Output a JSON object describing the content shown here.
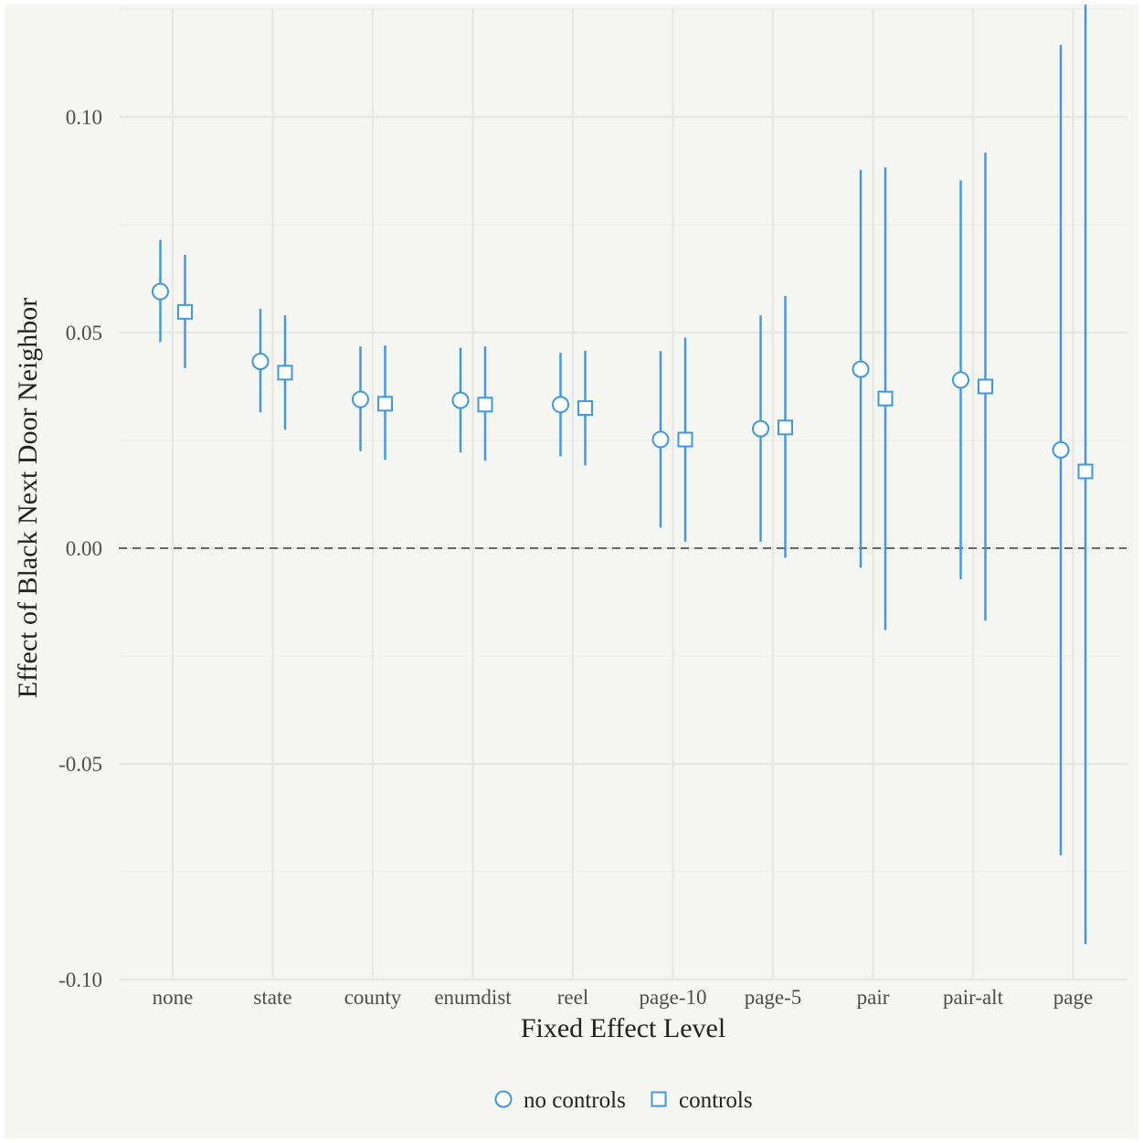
{
  "chart_data": {
    "type": "scatter",
    "subtype": "point-range",
    "title": "",
    "xlabel": "Fixed Effect Level",
    "ylabel": "Effect of Black Next Door Neighbor",
    "categories": [
      "none",
      "state",
      "county",
      "enumdist",
      "reel",
      "page-10",
      "page-5",
      "pair",
      "pair-alt",
      "page"
    ],
    "ylim": [
      -0.1,
      0.125
    ],
    "yticks": [
      -0.1,
      -0.05,
      0.0,
      0.05,
      0.1
    ],
    "ytick_labels": [
      "-0.10",
      "-0.05",
      "0.00",
      "0.05",
      "0.10"
    ],
    "reference_line": {
      "y": 0.0,
      "style": "dashed"
    },
    "grid": true,
    "legend_position": "bottom",
    "series": [
      {
        "name": "no controls",
        "marker": "circle",
        "color": "#3d97e6",
        "values": [
          0.0595,
          0.0433,
          0.0345,
          0.0343,
          0.0333,
          0.0252,
          0.0277,
          0.0415,
          0.039,
          0.0228
        ],
        "lower": [
          0.0478,
          0.0315,
          0.0225,
          0.0222,
          0.0213,
          0.0048,
          0.0015,
          -0.0045,
          -0.0072,
          -0.0712
        ],
        "upper": [
          0.0715,
          0.0555,
          0.0468,
          0.0465,
          0.0453,
          0.0457,
          0.054,
          0.0877,
          0.0853,
          0.1167
        ]
      },
      {
        "name": "controls",
        "marker": "square",
        "color": "#3d97e6",
        "values": [
          0.0548,
          0.0407,
          0.0335,
          0.0333,
          0.0325,
          0.0252,
          0.028,
          0.0347,
          0.0375,
          0.0178
        ],
        "lower": [
          0.0418,
          0.0275,
          0.0205,
          0.0203,
          0.0192,
          0.0015,
          -0.0022,
          -0.019,
          -0.0168,
          -0.0918
        ],
        "upper": [
          0.068,
          0.054,
          0.047,
          0.0468,
          0.0458,
          0.0488,
          0.0585,
          0.0883,
          0.0917,
          0.1275
        ]
      }
    ]
  }
}
